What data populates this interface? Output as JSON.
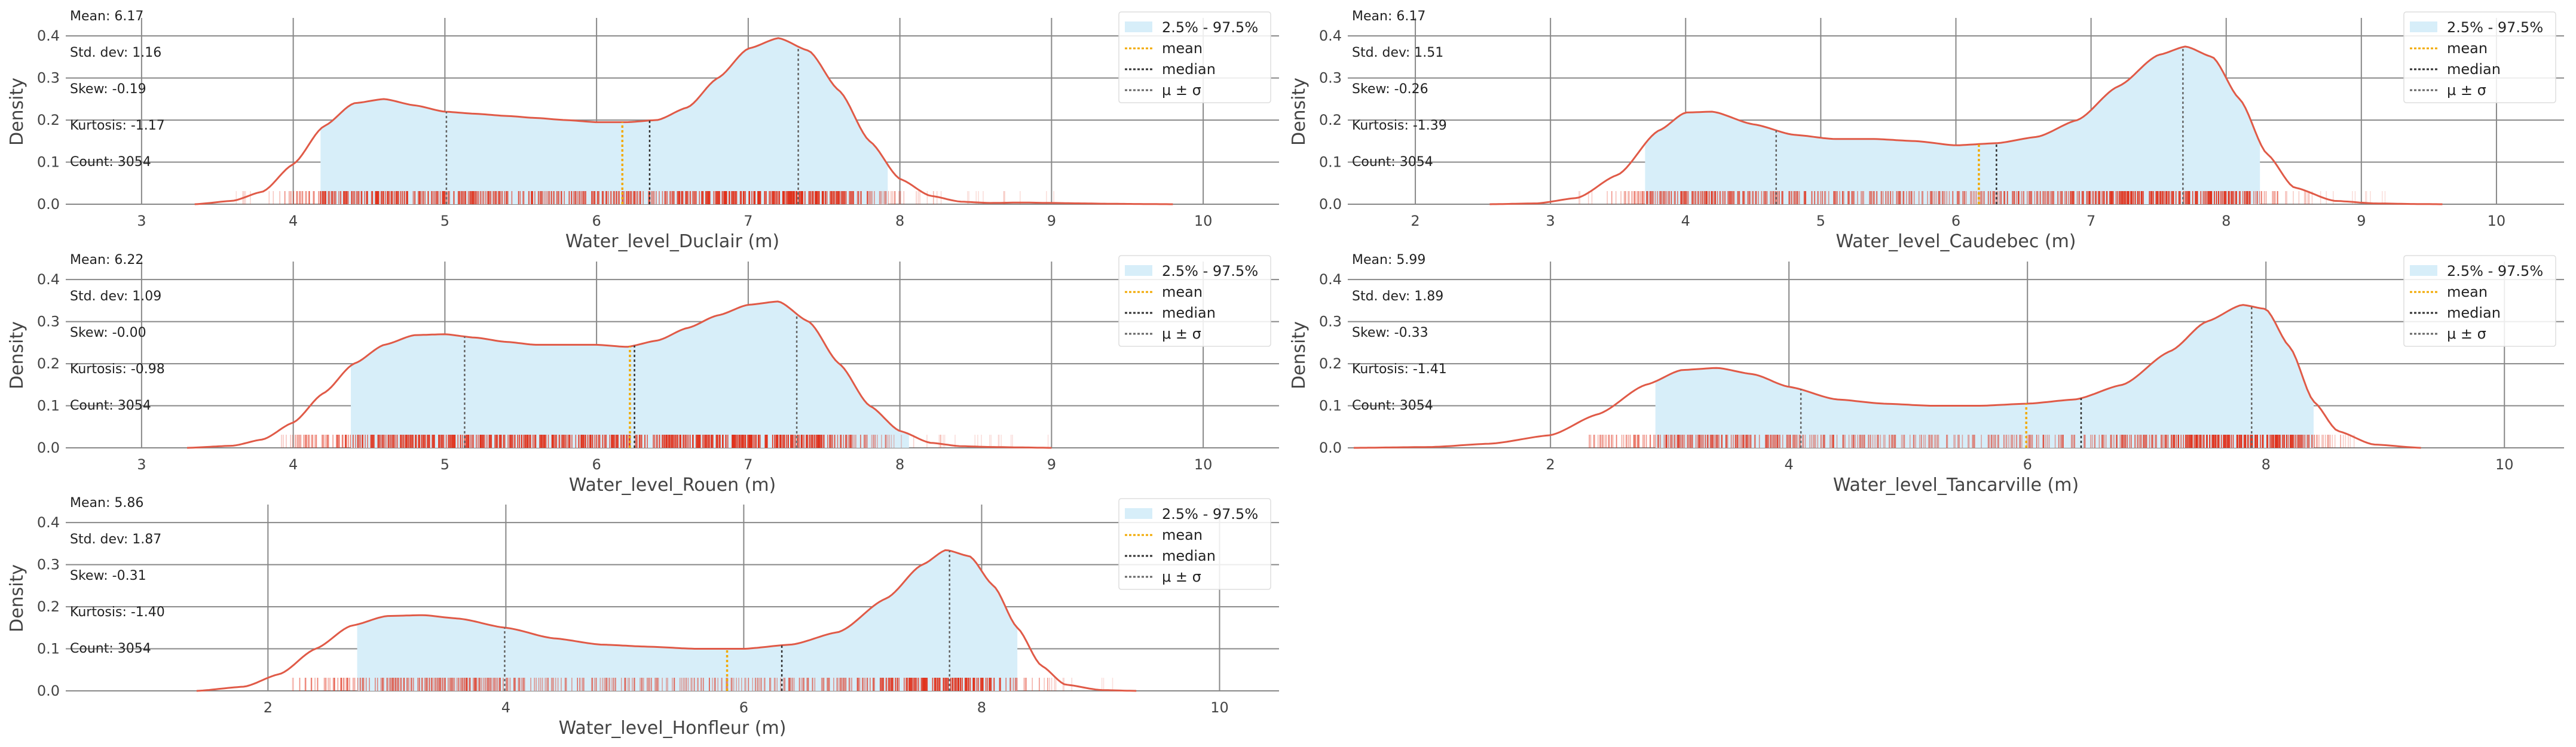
{
  "colors": {
    "kde": "#e05a47",
    "rug": "#e0301a",
    "band_fill": "#d7eef9",
    "mean": "#f2a900",
    "median": "#333333",
    "sigma": "#666666",
    "grid": "#888888",
    "text": "#222222",
    "axis_text": "#444444"
  },
  "legend": {
    "band": "2.5% - 97.5%",
    "mean": "mean",
    "median": "median",
    "sigma": "μ ± σ"
  },
  "stats_labels": {
    "mean": "Mean:",
    "std": "Std. dev:",
    "skew": "Skew:",
    "kurt": "Kurtosis:",
    "count": "Count:"
  },
  "chart_data": [
    {
      "type": "area",
      "xlabel": "Water_level_Duclair (m)",
      "ylabel": "Density",
      "xlim": [
        2.5,
        10.5
      ],
      "ylim": [
        0,
        0.44
      ],
      "xticks": [
        3,
        4,
        5,
        6,
        7,
        8,
        9,
        10
      ],
      "yticks": [
        0.0,
        0.1,
        0.2,
        0.3,
        0.4
      ],
      "stats": {
        "mean": "6.17",
        "std": "1.16",
        "skew": "-0.19",
        "kurtosis": "-1.17",
        "count": "3054"
      },
      "mean": 6.17,
      "median": 6.35,
      "sigma_low": 5.01,
      "sigma_high": 7.33,
      "band": [
        4.18,
        7.92
      ],
      "rug": [
        3.6,
        9.1
      ],
      "kde": {
        "x": [
          3.35,
          3.6,
          3.8,
          4.0,
          4.2,
          4.4,
          4.6,
          4.8,
          5.0,
          5.2,
          5.4,
          5.6,
          5.8,
          6.0,
          6.2,
          6.4,
          6.6,
          6.8,
          7.0,
          7.2,
          7.4,
          7.6,
          7.8,
          8.0,
          8.2,
          8.4,
          8.6,
          8.8,
          9.0,
          9.2,
          9.4,
          9.6,
          9.8
        ],
        "y": [
          0.0,
          0.008,
          0.03,
          0.095,
          0.185,
          0.24,
          0.25,
          0.235,
          0.22,
          0.215,
          0.21,
          0.205,
          0.2,
          0.195,
          0.195,
          0.2,
          0.23,
          0.3,
          0.37,
          0.395,
          0.365,
          0.27,
          0.15,
          0.06,
          0.02,
          0.006,
          0.003,
          0.004,
          0.003,
          0.002,
          0.001,
          0.0005,
          0.0
        ]
      }
    },
    {
      "type": "area",
      "xlabel": "Water_level_Caudebec (m)",
      "ylabel": "Density",
      "xlim": [
        1.5,
        10.5
      ],
      "ylim": [
        0,
        0.44
      ],
      "xticks": [
        2,
        3,
        4,
        5,
        6,
        7,
        8,
        9,
        10
      ],
      "yticks": [
        0.0,
        0.1,
        0.2,
        0.3,
        0.4
      ],
      "stats": {
        "mean": "6.17",
        "std": "1.51",
        "skew": "-0.26",
        "kurtosis": "-1.39",
        "count": "3054"
      },
      "mean": 6.17,
      "median": 6.3,
      "sigma_low": 4.67,
      "sigma_high": 7.68,
      "band": [
        3.7,
        8.25
      ],
      "rug": [
        3.2,
        9.2
      ],
      "kde": {
        "x": [
          2.55,
          2.9,
          3.2,
          3.5,
          3.8,
          4.0,
          4.2,
          4.5,
          4.8,
          5.1,
          5.4,
          5.7,
          6.0,
          6.3,
          6.6,
          6.9,
          7.2,
          7.5,
          7.7,
          7.9,
          8.1,
          8.3,
          8.5,
          8.8,
          9.1,
          9.4,
          9.6
        ],
        "y": [
          0.0,
          0.002,
          0.015,
          0.07,
          0.175,
          0.218,
          0.22,
          0.19,
          0.165,
          0.155,
          0.155,
          0.15,
          0.14,
          0.145,
          0.16,
          0.2,
          0.28,
          0.355,
          0.375,
          0.35,
          0.25,
          0.12,
          0.04,
          0.008,
          0.002,
          0.0005,
          0.0
        ]
      }
    },
    {
      "type": "area",
      "xlabel": "Water_level_Rouen (m)",
      "ylabel": "Density",
      "xlim": [
        2.5,
        10.5
      ],
      "ylim": [
        0,
        0.44
      ],
      "xticks": [
        3,
        4,
        5,
        6,
        7,
        8,
        9,
        10
      ],
      "yticks": [
        0.0,
        0.1,
        0.2,
        0.3,
        0.4
      ],
      "stats": {
        "mean": "6.22",
        "std": "1.09",
        "skew": "-0.00",
        "kurtosis": "-0.98",
        "count": "3054"
      },
      "mean": 6.22,
      "median": 6.25,
      "sigma_low": 5.13,
      "sigma_high": 7.32,
      "band": [
        4.38,
        8.06
      ],
      "rug": [
        3.9,
        9.0
      ],
      "kde": {
        "x": [
          3.3,
          3.6,
          3.8,
          4.0,
          4.2,
          4.4,
          4.6,
          4.8,
          5.0,
          5.2,
          5.4,
          5.6,
          5.8,
          6.0,
          6.2,
          6.4,
          6.6,
          6.8,
          7.0,
          7.2,
          7.4,
          7.6,
          7.8,
          8.0,
          8.2,
          8.4,
          8.6,
          8.8,
          9.0
        ],
        "y": [
          0.0,
          0.005,
          0.02,
          0.06,
          0.13,
          0.2,
          0.245,
          0.268,
          0.27,
          0.262,
          0.252,
          0.245,
          0.245,
          0.245,
          0.24,
          0.255,
          0.285,
          0.315,
          0.34,
          0.348,
          0.3,
          0.2,
          0.1,
          0.04,
          0.012,
          0.004,
          0.002,
          0.001,
          0.0
        ]
      }
    },
    {
      "type": "area",
      "xlabel": "Water_level_Tancarville (m)",
      "ylabel": "Density",
      "xlim": [
        0.3,
        10.5
      ],
      "ylim": [
        0,
        0.44
      ],
      "xticks": [
        2,
        4,
        6,
        8,
        10
      ],
      "yticks": [
        0.0,
        0.1,
        0.2,
        0.3,
        0.4
      ],
      "stats": {
        "mean": "5.99",
        "std": "1.89",
        "skew": "-0.33",
        "kurtosis": "-1.41",
        "count": "3054"
      },
      "mean": 5.99,
      "median": 6.45,
      "sigma_low": 4.1,
      "sigma_high": 7.88,
      "band": [
        2.88,
        8.4
      ],
      "rug": [
        2.3,
        8.8
      ],
      "kde": {
        "x": [
          0.35,
          1.0,
          1.5,
          2.0,
          2.4,
          2.8,
          3.1,
          3.4,
          3.7,
          4.0,
          4.4,
          4.8,
          5.2,
          5.6,
          6.0,
          6.4,
          6.8,
          7.2,
          7.5,
          7.8,
          8.0,
          8.2,
          8.4,
          8.6,
          8.9,
          9.3
        ],
        "y": [
          0.0,
          0.002,
          0.01,
          0.03,
          0.08,
          0.15,
          0.185,
          0.19,
          0.175,
          0.145,
          0.115,
          0.105,
          0.1,
          0.1,
          0.105,
          0.115,
          0.15,
          0.23,
          0.3,
          0.34,
          0.33,
          0.24,
          0.11,
          0.04,
          0.008,
          0.0
        ]
      }
    },
    {
      "type": "area",
      "xlabel": "Water_level_Honfleur (m)",
      "ylabel": "Density",
      "xlim": [
        0.3,
        10.5
      ],
      "ylim": [
        0,
        0.44
      ],
      "xticks": [
        2,
        4,
        6,
        8,
        10
      ],
      "yticks": [
        0.0,
        0.1,
        0.2,
        0.3,
        0.4
      ],
      "stats": {
        "mean": "5.86",
        "std": "1.87",
        "skew": "-0.31",
        "kurtosis": "-1.40",
        "count": "3054"
      },
      "mean": 5.86,
      "median": 6.32,
      "sigma_low": 3.99,
      "sigma_high": 7.73,
      "band": [
        2.75,
        8.3
      ],
      "rug": [
        2.2,
        9.2
      ],
      "kde": {
        "x": [
          1.4,
          1.8,
          2.1,
          2.4,
          2.7,
          3.0,
          3.3,
          3.6,
          4.0,
          4.4,
          4.8,
          5.2,
          5.6,
          6.0,
          6.4,
          6.8,
          7.2,
          7.5,
          7.7,
          7.9,
          8.1,
          8.3,
          8.5,
          8.7,
          9.0,
          9.3
        ],
        "y": [
          0.0,
          0.01,
          0.04,
          0.1,
          0.155,
          0.178,
          0.18,
          0.172,
          0.15,
          0.125,
          0.11,
          0.105,
          0.1,
          0.1,
          0.11,
          0.14,
          0.22,
          0.3,
          0.335,
          0.32,
          0.25,
          0.15,
          0.06,
          0.015,
          0.002,
          0.0
        ]
      }
    }
  ]
}
